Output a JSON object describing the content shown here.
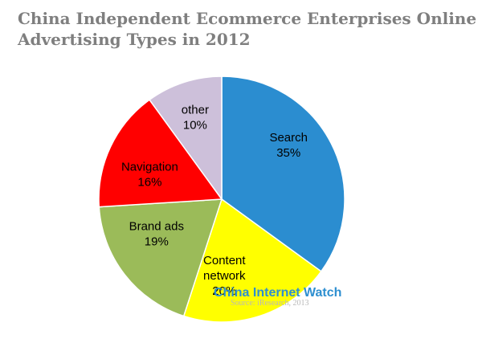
{
  "title_line1": "China Independent Ecommerce Enterprises Online",
  "title_line2": "Advertising Types in 2012",
  "watermark": "China Internet Watch",
  "source": "Source: iResearch, 2013",
  "chart_data": {
    "type": "pie",
    "title": "China Independent Ecommerce Enterprises Online Advertising Types in 2012",
    "slices": [
      {
        "name": "Search",
        "lines": [
          "Search",
          "35%"
        ],
        "value": 35,
        "color": "#2b8dd0"
      },
      {
        "name": "Content network",
        "lines": [
          "Content",
          "network",
          "20%"
        ],
        "value": 20,
        "color": "#ffff00"
      },
      {
        "name": "Brand ads",
        "lines": [
          "Brand ads",
          "19%"
        ],
        "value": 19,
        "color": "#9bbb59"
      },
      {
        "name": "Navigation",
        "lines": [
          "Navigation",
          "16%"
        ],
        "value": 16,
        "color": "#ff0000"
      },
      {
        "name": "other",
        "lines": [
          "other",
          "10%"
        ],
        "value": 10,
        "color": "#cdc0da"
      }
    ]
  }
}
